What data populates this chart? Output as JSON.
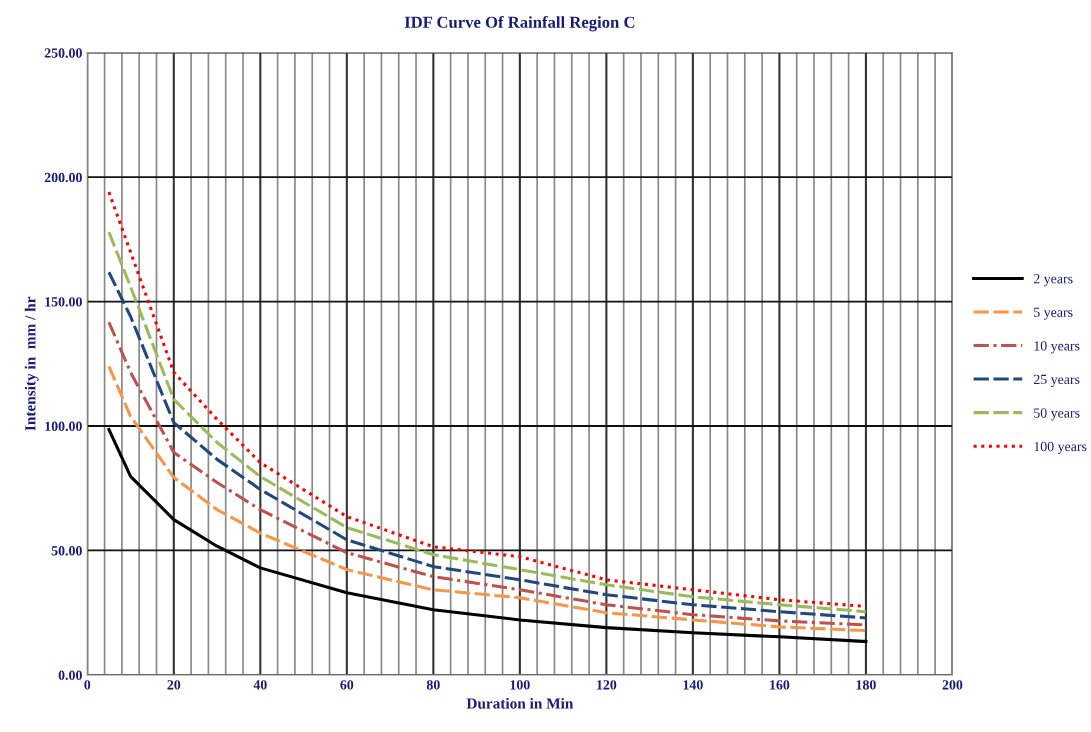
{
  "chart_data": {
    "type": "line",
    "title": "IDF Curve Of Rainfall Region C",
    "xlabel": "Duration in Min",
    "ylabel": "Intensity in  mm / hr",
    "x": [
      5,
      10,
      20,
      30,
      40,
      60,
      80,
      100,
      120,
      140,
      160,
      180
    ],
    "series": [
      {
        "name": "2 years",
        "color": "#000000",
        "line_style": "solid",
        "values": [
          98.6,
          79.8,
          62.4,
          51.7,
          43.0,
          33.0,
          26.2,
          22.1,
          19.0,
          16.9,
          15.3,
          13.4
        ]
      },
      {
        "name": "5 years",
        "color": "#f79646",
        "line_style": "dashed",
        "values": [
          124,
          103.9,
          79.3,
          66.4,
          57,
          42.3,
          34.2,
          31,
          25,
          22.1,
          19.3,
          17.8
        ]
      },
      {
        "name": "10 years",
        "color": "#c0504d",
        "line_style": "dashdot",
        "values": [
          141.7,
          121.6,
          89.4,
          77.3,
          66.4,
          49.1,
          39.5,
          34.2,
          28.2,
          24.2,
          21.7,
          20.1
        ]
      },
      {
        "name": "25 years",
        "color": "#1f497d",
        "line_style": "dashed",
        "values": [
          161.8,
          144,
          101.4,
          86.6,
          74.5,
          54.3,
          43.5,
          38.2,
          32.2,
          28.2,
          25.4,
          22.9
        ]
      },
      {
        "name": "50 years",
        "color": "#9bbb59",
        "line_style": "dashed",
        "values": [
          177.9,
          156,
          110.7,
          93.4,
          79.7,
          59.2,
          48.3,
          42.3,
          36.2,
          31.4,
          28.2,
          25.4
        ]
      },
      {
        "name": "100 years",
        "color": "#ff0000",
        "line_style": "dotted",
        "values": [
          194,
          169.9,
          121.6,
          102.7,
          85.3,
          63.6,
          51.5,
          47.5,
          38.2,
          34.2,
          30.2,
          27.5
        ]
      }
    ],
    "xlim": [
      0,
      200
    ],
    "ylim": [
      0,
      250
    ],
    "xticks": [
      0,
      {
        "value": 4,
        "label": null
      },
      {
        "value": 8,
        "label": null
      },
      {
        "value": 12,
        "label": null
      },
      {
        "value": 16,
        "label": null
      },
      20,
      {
        "value": 24,
        "label": null
      },
      {
        "value": 28,
        "label": null
      },
      {
        "value": 32,
        "label": null
      },
      {
        "value": 36,
        "label": null
      },
      40,
      {
        "value": 44,
        "label": null
      },
      {
        "value": 48,
        "label": null
      },
      {
        "value": 52,
        "label": null
      },
      {
        "value": 56,
        "label": null
      },
      60,
      {
        "value": 64,
        "label": null
      },
      {
        "value": 68,
        "label": null
      },
      {
        "value": 72,
        "label": null
      },
      {
        "value": 76,
        "label": null
      },
      80,
      {
        "value": 84,
        "label": null
      },
      {
        "value": 88,
        "label": null
      },
      {
        "value": 92,
        "label": null
      },
      {
        "value": 96,
        "label": null
      },
      100,
      {
        "value": 104,
        "label": null
      },
      {
        "value": 108,
        "label": null
      },
      {
        "value": 112,
        "label": null
      },
      {
        "value": 116,
        "label": null
      },
      120,
      {
        "value": 124,
        "label": null
      },
      {
        "value": 128,
        "label": null
      },
      {
        "value": 132,
        "label": null
      },
      {
        "value": 136,
        "label": null
      },
      140,
      {
        "value": 144,
        "label": null
      },
      {
        "value": 148,
        "label": null
      },
      {
        "value": 152,
        "label": null
      },
      {
        "value": 156,
        "label": null
      },
      160,
      {
        "value": 164,
        "label": null
      },
      {
        "value": 168,
        "label": null
      },
      {
        "value": 172,
        "label": null
      },
      {
        "value": 176,
        "label": null
      },
      180,
      {
        "value": 184,
        "label": null
      },
      {
        "value": 188,
        "label": null
      },
      {
        "value": 192,
        "label": null
      },
      {
        "value": 196,
        "label": null
      },
      200
    ],
    "yticks": [
      {
        "value": 0,
        "label": "0.00"
      },
      {
        "value": 50,
        "label": "50.00"
      },
      {
        "value": 100,
        "label": "100.00"
      },
      {
        "value": 150,
        "label": "150.00"
      },
      {
        "value": 200,
        "label": "200.00"
      },
      {
        "value": 250,
        "label": "250.00"
      }
    ],
    "grid": true,
    "legend": "right",
    "marker": "none"
  }
}
